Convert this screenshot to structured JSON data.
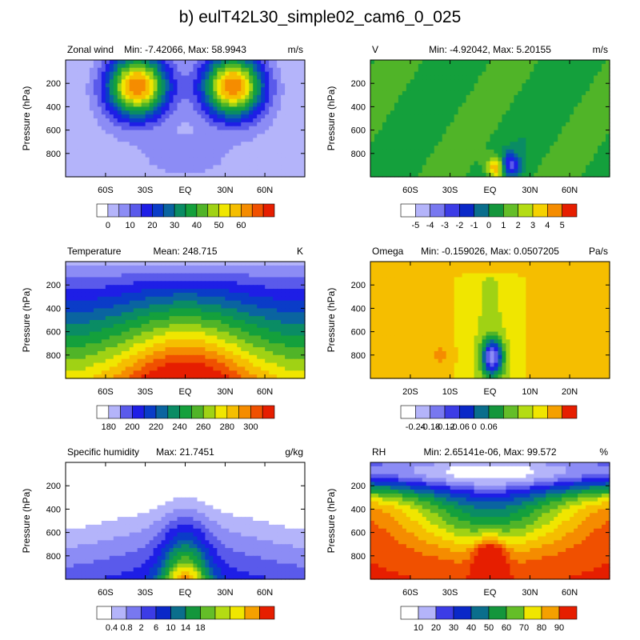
{
  "title": "b) eulT42L30_simple02_cam6_0_025",
  "chart_data": [
    {
      "type": "heatmap",
      "left_label": "Zonal wind",
      "center_label": "Min: -7.42066, Max: 58.9943",
      "units": "m/s",
      "ylabel": "Pressure (hPa)",
      "yticks": [
        "200",
        "400",
        "600",
        "800"
      ],
      "xticks": [
        "60S",
        "30S",
        "EQ",
        "30N",
        "60N"
      ],
      "colorbar": {
        "labels": [
          "0",
          "10",
          "20",
          "30",
          "40",
          "50",
          "60"
        ],
        "colors": [
          "#ffffff",
          "#b4b4fa",
          "#8c8cf5",
          "#5a5aeb",
          "#1e1ee6",
          "#0a3cc8",
          "#0a64a0",
          "#0a8c64",
          "#14a03c",
          "#50b428",
          "#a0d214",
          "#f0e600",
          "#f5be00",
          "#f58c00",
          "#f05000",
          "#e61e00"
        ]
      }
    },
    {
      "type": "heatmap",
      "left_label": "V",
      "center_label": "Min: -4.92042, Max: 5.20155",
      "units": "m/s",
      "ylabel": "Pressure (hPa)",
      "yticks": [
        "200",
        "400",
        "600",
        "800"
      ],
      "xticks": [
        "60S",
        "30S",
        "EQ",
        "30N",
        "60N"
      ],
      "colorbar": {
        "labels": [
          "-5",
          "-4",
          "-3",
          "-2",
          "-1",
          "0",
          "1",
          "2",
          "3",
          "4",
          "5"
        ],
        "colors": [
          "#ffffff",
          "#b4b4fa",
          "#7878f0",
          "#3c3ce6",
          "#0a28c8",
          "#0a6e8c",
          "#14963c",
          "#64be28",
          "#b4dc14",
          "#f5d200",
          "#f58c00",
          "#e61e00"
        ]
      }
    },
    {
      "type": "heatmap",
      "left_label": "Temperature",
      "center_label": "Mean: 248.715",
      "units": "K",
      "ylabel": "Pressure (hPa)",
      "yticks": [
        "200",
        "400",
        "600",
        "800"
      ],
      "xticks": [
        "60S",
        "30S",
        "EQ",
        "30N",
        "60N"
      ],
      "colorbar": {
        "labels": [
          "180",
          "200",
          "220",
          "240",
          "260",
          "280",
          "300"
        ],
        "colors": [
          "#ffffff",
          "#b4b4fa",
          "#5a5aeb",
          "#1e1ee6",
          "#0a3cc8",
          "#0a64a0",
          "#0a8c64",
          "#14a03c",
          "#50b428",
          "#a0d214",
          "#f0e600",
          "#f5be00",
          "#f58c00",
          "#f05000",
          "#e61e00"
        ]
      }
    },
    {
      "type": "heatmap",
      "left_label": "Omega",
      "center_label": "Min: -0.159026, Max: 0.0507205",
      "units": "Pa/s",
      "ylabel": "Pressure (hPa)",
      "yticks": [
        "200",
        "400",
        "600",
        "800"
      ],
      "xticks": [
        "20S",
        "10S",
        "EQ",
        "10N",
        "20N"
      ],
      "colorbar": {
        "labels": [
          "-0.24",
          "-0.18",
          "-0.12",
          "-0.06",
          "0",
          "0.06"
        ],
        "colors": [
          "#ffffff",
          "#b4b4fa",
          "#7878f0",
          "#3c3ce6",
          "#0a28c8",
          "#0a6e8c",
          "#14963c",
          "#64be28",
          "#b4dc14",
          "#f0e600",
          "#f5a000",
          "#e61e00"
        ]
      }
    },
    {
      "type": "heatmap",
      "left_label": "Specific humidity",
      "center_label": "Max: 21.7451",
      "units": "g/kg",
      "ylabel": "Pressure (hPa)",
      "yticks": [
        "200",
        "400",
        "600",
        "800"
      ],
      "xticks": [
        "60S",
        "30S",
        "EQ",
        "30N",
        "60N"
      ],
      "colorbar": {
        "labels": [
          "0.4",
          "0.8",
          "2",
          "6",
          "10",
          "14",
          "18"
        ],
        "colors": [
          "#ffffff",
          "#b4b4fa",
          "#7878f0",
          "#3c3ce6",
          "#0a28c8",
          "#0a6e8c",
          "#14963c",
          "#64be28",
          "#b4dc14",
          "#f0e600",
          "#f5a000",
          "#e61e00"
        ]
      }
    },
    {
      "type": "heatmap",
      "left_label": "RH",
      "center_label": "Min: 2.65141e-06, Max: 99.572",
      "units": "%",
      "ylabel": "Pressure (hPa)",
      "yticks": [
        "200",
        "400",
        "600",
        "800"
      ],
      "xticks": [
        "60S",
        "30S",
        "EQ",
        "30N",
        "60N"
      ],
      "colorbar": {
        "labels": [
          "10",
          "20",
          "30",
          "40",
          "50",
          "60",
          "70",
          "80",
          "90"
        ],
        "colors": [
          "#ffffff",
          "#b4b4fa",
          "#3c3ce6",
          "#0a28c8",
          "#0a6e8c",
          "#14963c",
          "#64be28",
          "#f0e600",
          "#f5a000",
          "#e61e00"
        ]
      }
    }
  ]
}
